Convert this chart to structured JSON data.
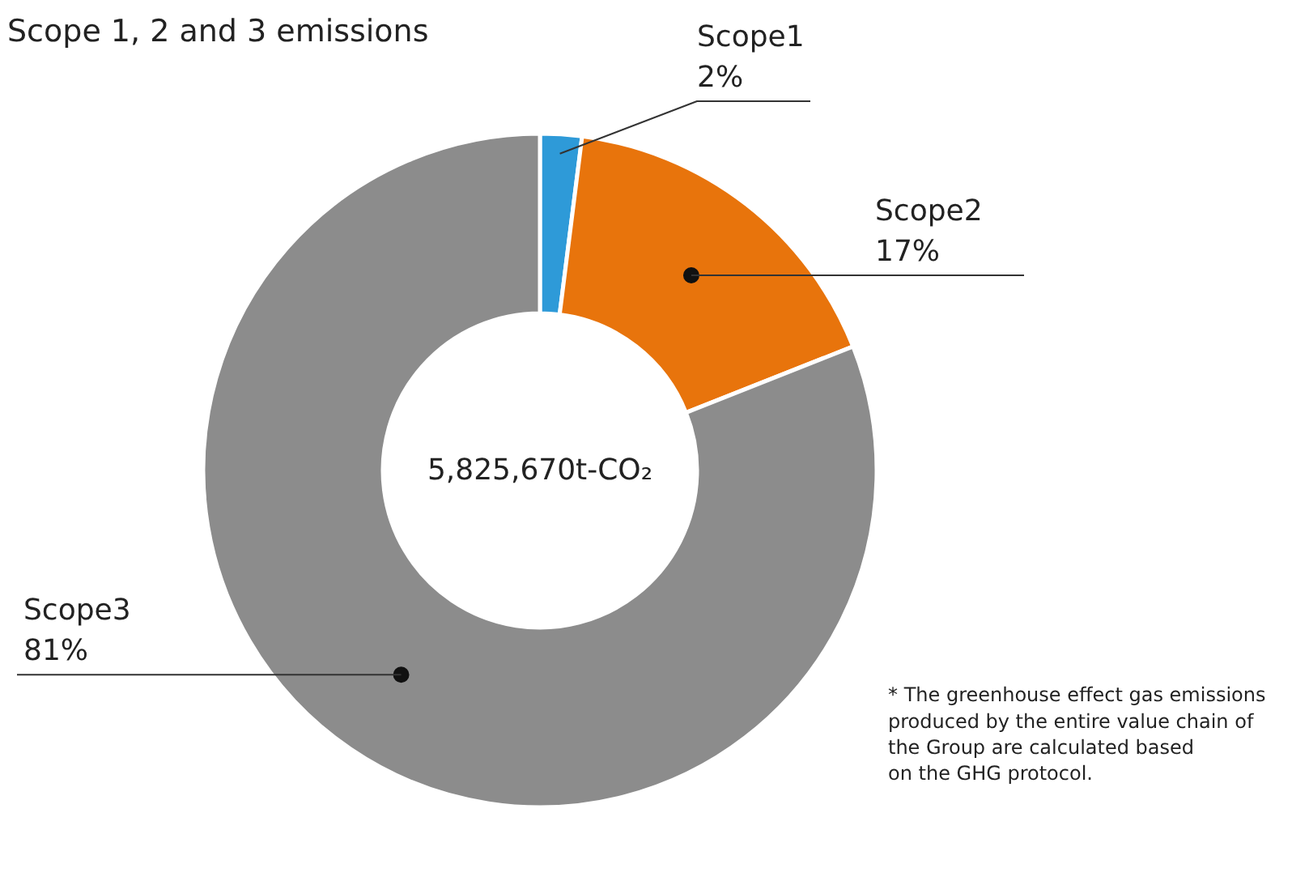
{
  "chart_data": {
    "type": "donut",
    "title": "Scope 1, 2 and 3 emissions",
    "categories": [
      "Scope1",
      "Scope2",
      "Scope3"
    ],
    "values": [
      2,
      17,
      81
    ],
    "colors": [
      "#2e9ad8",
      "#e8740c",
      "#8c8c8c"
    ],
    "value_labels": [
      "2%",
      "17%",
      "81%"
    ],
    "annotations": [
      "5,825,670t-CO₂",
      "* The greenhouse effect gas emissions\nproduced by the entire value chain of\nthe Group are calculated based\non the GHG protocol."
    ]
  }
}
